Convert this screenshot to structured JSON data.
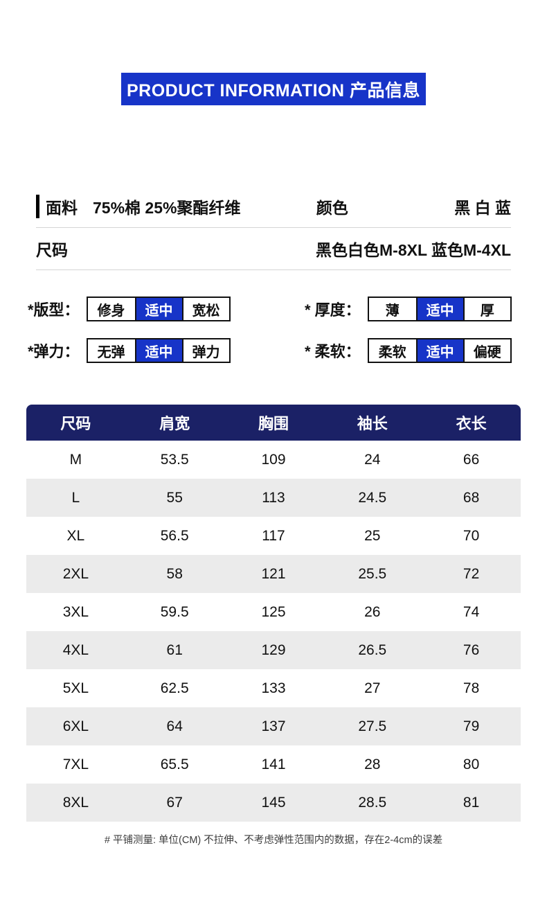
{
  "banner": {
    "title": "PRODUCT INFORMATION  产品信息",
    "bg_color": "#1734c8",
    "text_color": "#ffffff"
  },
  "specs": {
    "fabric_label": "面料",
    "fabric_value": "75%棉 25%聚酯纤维",
    "color_label": "颜色",
    "color_value": "黑 白 蓝",
    "size_label": "尺码",
    "size_value": "黑色白色M-8XL 蓝色M-4XL"
  },
  "attributes": [
    {
      "label": "*版型：",
      "options": [
        "修身",
        "适中",
        "宽松"
      ],
      "selected_index": 1
    },
    {
      "label": "* 厚度：",
      "options": [
        "薄",
        "适中",
        "厚"
      ],
      "selected_index": 1
    },
    {
      "label": "*弹力：",
      "options": [
        "无弹",
        "适中",
        "弹力"
      ],
      "selected_index": 1
    },
    {
      "label": "* 柔软：",
      "options": [
        "柔软",
        "适中",
        "偏硬"
      ],
      "selected_index": 1
    }
  ],
  "size_table": {
    "headers": [
      "尺码",
      "肩宽",
      "胸围",
      "袖长",
      "衣长"
    ],
    "rows": [
      [
        "M",
        "53.5",
        "109",
        "24",
        "66"
      ],
      [
        "L",
        "55",
        "113",
        "24.5",
        "68"
      ],
      [
        "XL",
        "56.5",
        "117",
        "25",
        "70"
      ],
      [
        "2XL",
        "58",
        "121",
        "25.5",
        "72"
      ],
      [
        "3XL",
        "59.5",
        "125",
        "26",
        "74"
      ],
      [
        "4XL",
        "61",
        "129",
        "26.5",
        "76"
      ],
      [
        "5XL",
        "62.5",
        "133",
        "27",
        "78"
      ],
      [
        "6XL",
        "64",
        "137",
        "27.5",
        "79"
      ],
      [
        "7XL",
        "65.5",
        "141",
        "28",
        "80"
      ],
      [
        "8XL",
        "67",
        "145",
        "28.5",
        "81"
      ]
    ],
    "header_bg": "#1b2166",
    "alt_row_bg": "#ebebeb"
  },
  "footnote": "# 平铺测量: 单位(CM) 不拉伸、不考虑弹性范围内的数据，存在2-4cm的误差"
}
